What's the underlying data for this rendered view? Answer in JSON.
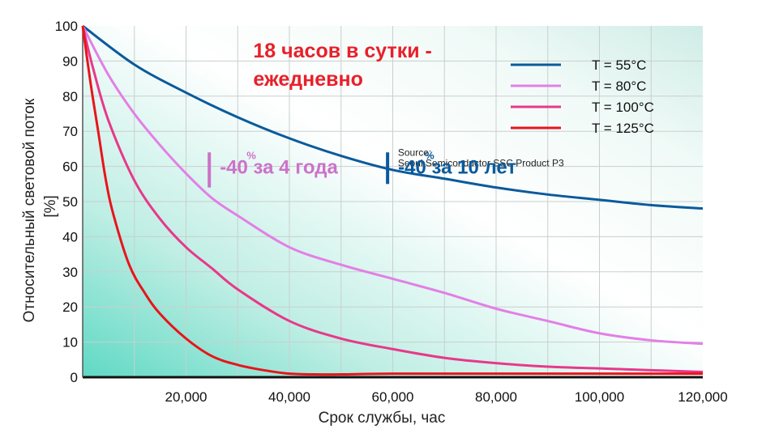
{
  "chart_data": {
    "type": "line",
    "xlabel": "Срок службы, час",
    "ylabel": "Относительный световой поток",
    "ylabel_unit": "[%]",
    "xlim": [
      0,
      120000
    ],
    "ylim": [
      0,
      100
    ],
    "x_ticks": [
      20000,
      40000,
      60000,
      80000,
      100000,
      120000
    ],
    "x_tick_labels": [
      "20,000",
      "40,000",
      "60,000",
      "80,000",
      "100,000",
      "120,000"
    ],
    "y_ticks": [
      0,
      10,
      20,
      30,
      40,
      50,
      60,
      70,
      80,
      90,
      100
    ],
    "y_tick_labels": [
      "0",
      "10",
      "20",
      "30",
      "40",
      "50",
      "60",
      "70",
      "80",
      "90",
      "100"
    ],
    "grid": true,
    "legend_position": "top-right",
    "series": [
      {
        "name": "T =   55°C",
        "color": "#0a5a9c",
        "x": [
          0,
          10000,
          20000,
          30000,
          40000,
          50000,
          60000,
          70000,
          80000,
          90000,
          100000,
          110000,
          120000
        ],
        "y": [
          100,
          89,
          81,
          74,
          68,
          63,
          59,
          56.5,
          54,
          52,
          50.5,
          49,
          48
        ]
      },
      {
        "name": "T =   80°C",
        "color": "#e37fe5",
        "x": [
          0,
          5000,
          10000,
          15000,
          20000,
          25000,
          30000,
          40000,
          50000,
          60000,
          70000,
          80000,
          90000,
          100000,
          110000,
          120000
        ],
        "y": [
          100,
          86,
          75,
          66,
          58,
          51,
          46,
          37,
          32,
          28,
          24,
          19.5,
          16,
          12.5,
          10.5,
          9.5
        ]
      },
      {
        "name": "T = 100°C",
        "color": "#e8388a",
        "x": [
          0,
          2000,
          5000,
          10000,
          15000,
          20000,
          25000,
          30000,
          40000,
          50000,
          60000,
          70000,
          80000,
          90000,
          100000,
          110000,
          120000
        ],
        "y": [
          100,
          88,
          73,
          56,
          45,
          37,
          31,
          25,
          16,
          11,
          8,
          5.5,
          4,
          3,
          2.5,
          2,
          1.5
        ]
      },
      {
        "name": "T = 125°C",
        "color": "#e8141c",
        "x": [
          0,
          1500,
          3000,
          4500,
          6000,
          9000,
          12000,
          15000,
          20000,
          25000,
          30000,
          35000,
          40000,
          45000,
          50000,
          60000,
          80000,
          100000,
          120000
        ],
        "y": [
          100,
          84,
          70,
          56,
          46,
          32,
          24,
          18,
          11,
          6,
          3.5,
          2,
          1,
          0.8,
          0.8,
          1,
          1,
          1,
          1
        ]
      }
    ],
    "annotations": [
      {
        "text": "Source:",
        "x": 61000,
        "y": 63
      },
      {
        "text": "Seoul Semiconductor SSC Product P3",
        "x": 61000,
        "y": 60
      },
      {
        "text": "18 часов в сутки -",
        "x": 33000,
        "y": 91
      },
      {
        "text": "ежедневно",
        "x": 33000,
        "y": 83
      }
    ],
    "markers": [
      {
        "x": 24500,
        "y_from": 54,
        "y_to": 64,
        "color": "#cc72c9",
        "label": "-40",
        "sup": "%",
        "label_tail": " за 4 года"
      },
      {
        "x": 59000,
        "y_from": 55,
        "y_to": 64,
        "color": "#0a5a9c",
        "label": "-40",
        "sup": "%",
        "label_tail": " за 10 лет"
      }
    ]
  }
}
